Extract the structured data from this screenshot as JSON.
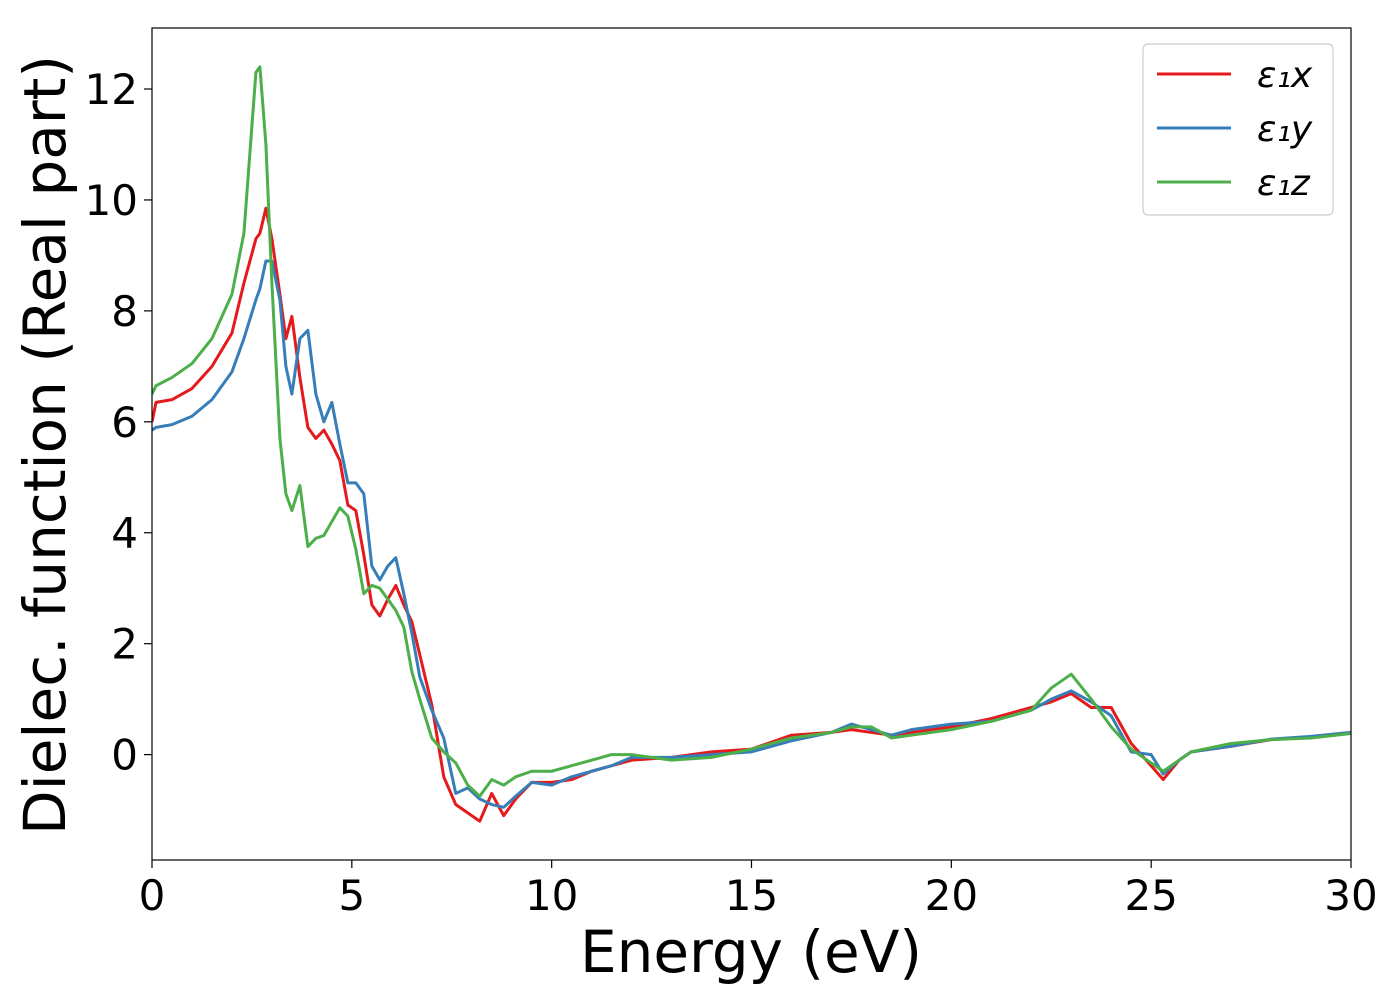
{
  "chart_data": {
    "type": "line",
    "xlabel": "Energy (eV)",
    "ylabel": "Dielec. function (Real part)",
    "xlim": [
      0,
      30
    ],
    "ylim": [
      -1.9,
      13.1
    ],
    "xticks": [
      0,
      5,
      10,
      15,
      20,
      25,
      30
    ],
    "yticks": [
      0,
      2,
      4,
      6,
      8,
      10,
      12
    ],
    "legend": "upper right",
    "x": [
      0,
      0.1,
      0.5,
      1,
      1.5,
      2,
      2.3,
      2.6,
      2.7,
      2.85,
      3.0,
      3.2,
      3.35,
      3.5,
      3.7,
      3.9,
      4.1,
      4.3,
      4.5,
      4.7,
      4.9,
      5.1,
      5.3,
      5.5,
      5.7,
      5.9,
      6.1,
      6.3,
      6.5,
      6.7,
      7,
      7.3,
      7.6,
      7.9,
      8.2,
      8.5,
      8.8,
      9.1,
      9.5,
      10,
      10.5,
      11,
      11.5,
      12,
      13,
      14,
      15,
      16,
      17,
      17.5,
      18,
      18.5,
      19,
      20,
      21,
      22,
      22.5,
      23,
      23.5,
      24,
      24.5,
      25,
      25.3,
      25.7,
      26,
      27,
      28,
      29,
      30
    ],
    "series": [
      {
        "name": "ε₁x",
        "color": "#e41a1c",
        "values": [
          6.0,
          6.35,
          6.4,
          6.6,
          7.0,
          7.6,
          8.5,
          9.3,
          9.4,
          9.85,
          9.3,
          8.3,
          7.5,
          7.9,
          6.8,
          5.9,
          5.7,
          5.85,
          5.6,
          5.3,
          4.5,
          4.4,
          3.6,
          2.7,
          2.5,
          2.8,
          3.05,
          2.7,
          2.4,
          1.8,
          0.9,
          -0.4,
          -0.9,
          -1.05,
          -1.2,
          -0.7,
          -1.1,
          -0.8,
          -0.5,
          -0.5,
          -0.45,
          -0.3,
          -0.2,
          -0.1,
          -0.05,
          0.05,
          0.1,
          0.35,
          0.4,
          0.45,
          0.4,
          0.35,
          0.4,
          0.5,
          0.65,
          0.85,
          0.95,
          1.1,
          0.85,
          0.85,
          0.2,
          -0.2,
          -0.45,
          -0.1,
          0.05,
          0.15,
          0.27,
          0.32,
          0.4
        ]
      },
      {
        "name": "ε₁y",
        "color": "#377eb8",
        "values": [
          5.85,
          5.9,
          5.95,
          6.1,
          6.4,
          6.9,
          7.5,
          8.2,
          8.4,
          8.9,
          8.9,
          8.2,
          7.0,
          6.5,
          7.5,
          7.65,
          6.5,
          6.0,
          6.35,
          5.6,
          4.9,
          4.9,
          4.7,
          3.4,
          3.15,
          3.4,
          3.55,
          2.9,
          2.2,
          1.4,
          0.8,
          0.3,
          -0.7,
          -0.6,
          -0.8,
          -0.9,
          -0.95,
          -0.75,
          -0.5,
          -0.55,
          -0.4,
          -0.3,
          -0.2,
          -0.05,
          -0.05,
          0.0,
          0.05,
          0.25,
          0.4,
          0.55,
          0.45,
          0.35,
          0.45,
          0.55,
          0.6,
          0.8,
          1.0,
          1.15,
          0.95,
          0.7,
          0.05,
          0.0,
          -0.35,
          -0.1,
          0.05,
          0.15,
          0.28,
          0.33,
          0.4
        ]
      },
      {
        "name": "ε₁z",
        "color": "#4daf4a",
        "values": [
          6.5,
          6.65,
          6.8,
          7.05,
          7.5,
          8.3,
          9.4,
          12.3,
          12.4,
          11.0,
          8.5,
          5.7,
          4.7,
          4.4,
          4.85,
          3.75,
          3.9,
          3.95,
          4.2,
          4.45,
          4.3,
          3.7,
          2.9,
          3.05,
          3.0,
          2.8,
          2.6,
          2.3,
          1.5,
          1.0,
          0.3,
          0.05,
          -0.15,
          -0.55,
          -0.75,
          -0.45,
          -0.55,
          -0.4,
          -0.3,
          -0.3,
          -0.2,
          -0.1,
          0.0,
          0.0,
          -0.1,
          -0.05,
          0.1,
          0.3,
          0.4,
          0.5,
          0.5,
          0.3,
          0.35,
          0.45,
          0.6,
          0.8,
          1.2,
          1.45,
          1.0,
          0.5,
          0.1,
          -0.15,
          -0.3,
          -0.1,
          0.05,
          0.2,
          0.27,
          0.3,
          0.38
        ]
      }
    ]
  }
}
